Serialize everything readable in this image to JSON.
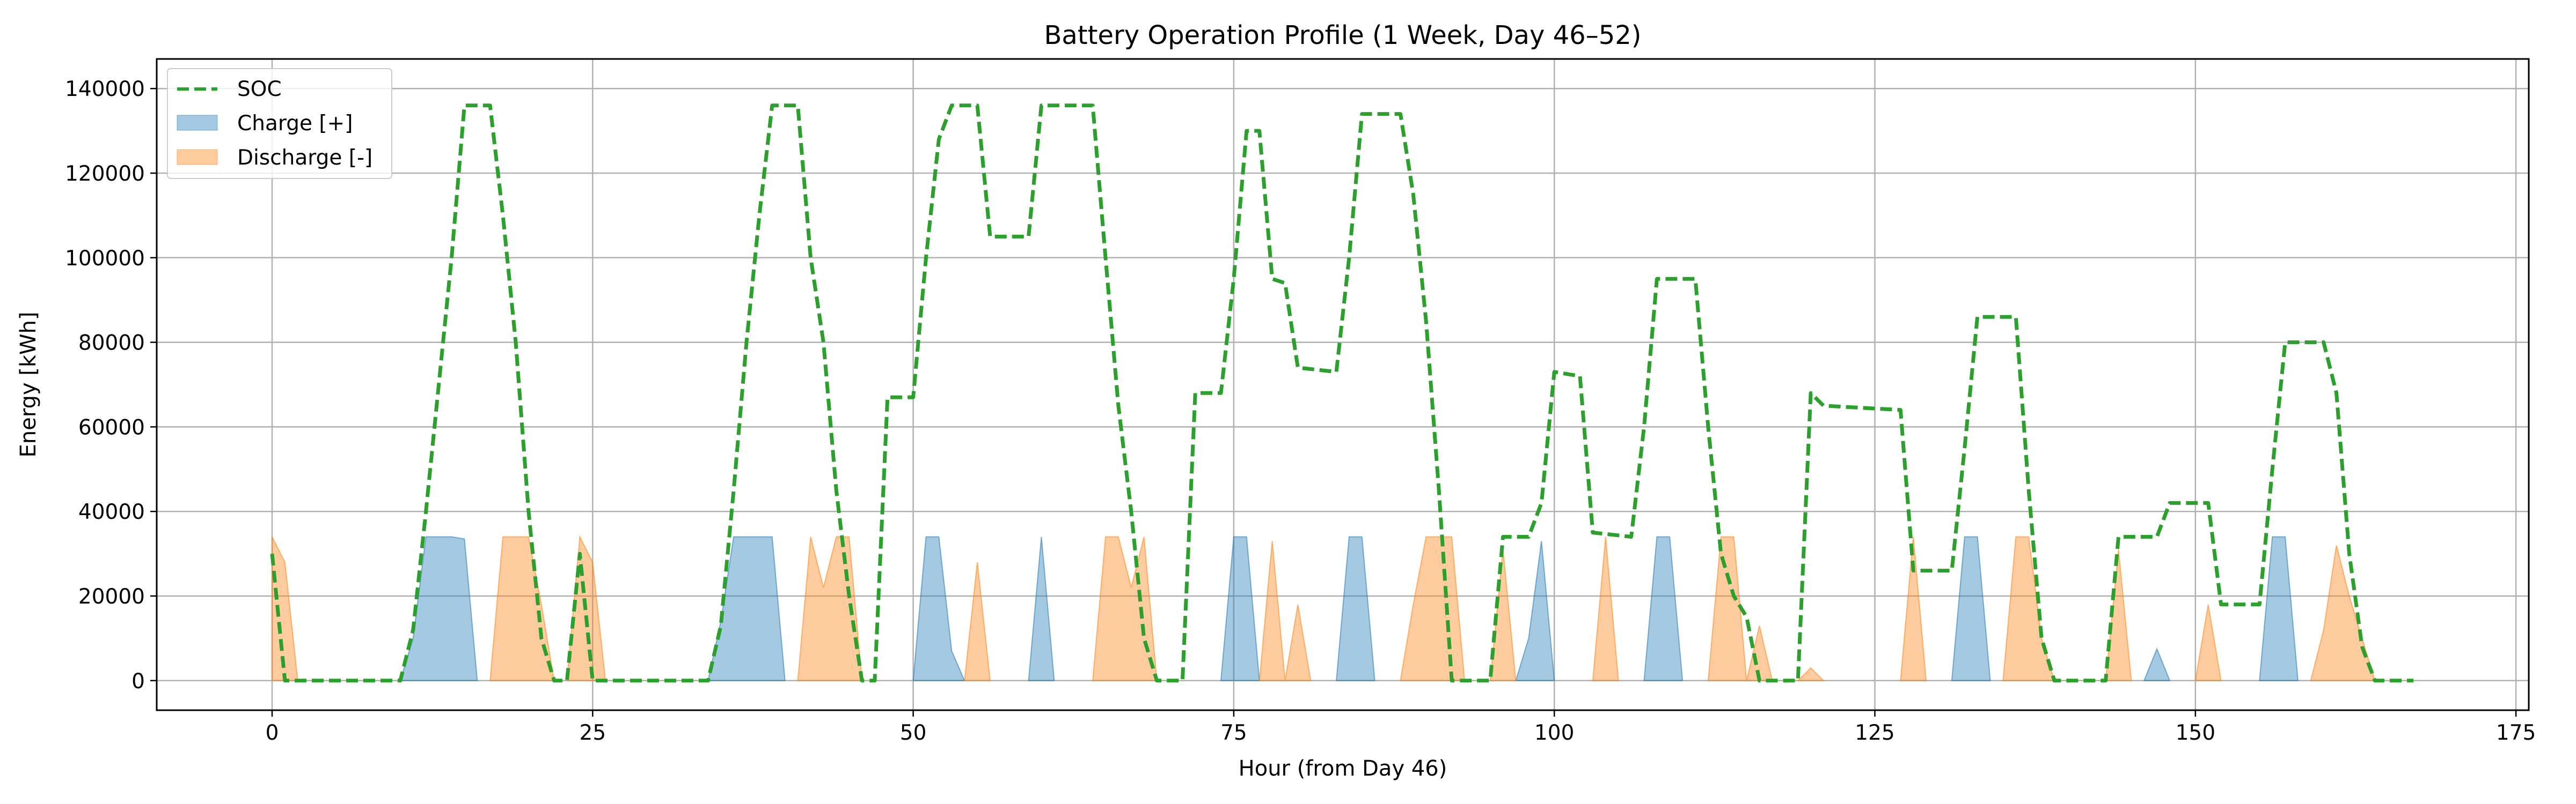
{
  "chart_data": {
    "type": "area",
    "title": "Battery Operation Profile (1 Week, Day 46–52)",
    "xlabel": "Hour (from Day 46)",
    "ylabel": "Energy [kWh]",
    "xlim": [
      -9,
      176
    ],
    "ylim": [
      -7000,
      147000
    ],
    "xticks": [
      0,
      25,
      50,
      75,
      100,
      125,
      150,
      175
    ],
    "yticks": [
      0,
      20000,
      40000,
      60000,
      80000,
      100000,
      120000,
      140000
    ],
    "grid": true,
    "legend_position": "top-left",
    "series": [
      {
        "name": "SOC",
        "kind": "line",
        "style": "dashed",
        "color": "#2ca02c",
        "points": [
          [
            0,
            30000
          ],
          [
            1,
            0
          ],
          [
            10,
            0
          ],
          [
            11,
            12000
          ],
          [
            12,
            40000
          ],
          [
            13,
            70000
          ],
          [
            14,
            100000
          ],
          [
            15,
            136000
          ],
          [
            17,
            136000
          ],
          [
            18,
            110000
          ],
          [
            19,
            80000
          ],
          [
            20,
            40000
          ],
          [
            21,
            10000
          ],
          [
            22,
            0
          ],
          [
            23,
            0
          ],
          [
            24,
            30000
          ],
          [
            25,
            0
          ],
          [
            34,
            0
          ],
          [
            35,
            13000
          ],
          [
            36,
            45000
          ],
          [
            37,
            80000
          ],
          [
            38,
            110000
          ],
          [
            39,
            136000
          ],
          [
            41,
            136000
          ],
          [
            42,
            100000
          ],
          [
            43,
            80000
          ],
          [
            44,
            45000
          ],
          [
            45,
            20000
          ],
          [
            46,
            0
          ],
          [
            47,
            0
          ],
          [
            48,
            67000
          ],
          [
            50,
            67000
          ],
          [
            51,
            100000
          ],
          [
            52,
            128000
          ],
          [
            53,
            136000
          ],
          [
            55,
            136000
          ],
          [
            56,
            105000
          ],
          [
            59,
            105000
          ],
          [
            60,
            136000
          ],
          [
            64,
            136000
          ],
          [
            65,
            100000
          ],
          [
            66,
            65000
          ],
          [
            67,
            40000
          ],
          [
            68,
            10000
          ],
          [
            69,
            0
          ],
          [
            71,
            0
          ],
          [
            72,
            68000
          ],
          [
            74,
            68000
          ],
          [
            75,
            95000
          ],
          [
            76,
            130000
          ],
          [
            77,
            130000
          ],
          [
            78,
            95000
          ],
          [
            79,
            94000
          ],
          [
            80,
            74000
          ],
          [
            83,
            73000
          ],
          [
            84,
            100000
          ],
          [
            85,
            134000
          ],
          [
            88,
            134000
          ],
          [
            89,
            115000
          ],
          [
            90,
            85000
          ],
          [
            91,
            45000
          ],
          [
            92,
            0
          ],
          [
            95,
            0
          ],
          [
            96,
            34000
          ],
          [
            98,
            34000
          ],
          [
            99,
            42000
          ],
          [
            100,
            73000
          ],
          [
            102,
            72000
          ],
          [
            103,
            35000
          ],
          [
            106,
            34000
          ],
          [
            107,
            60000
          ],
          [
            108,
            95000
          ],
          [
            111,
            95000
          ],
          [
            112,
            60000
          ],
          [
            113,
            30000
          ],
          [
            114,
            20000
          ],
          [
            115,
            15000
          ],
          [
            116,
            0
          ],
          [
            119,
            0
          ],
          [
            120,
            68000
          ],
          [
            121,
            65000
          ],
          [
            127,
            64000
          ],
          [
            128,
            26000
          ],
          [
            131,
            26000
          ],
          [
            132,
            55000
          ],
          [
            133,
            86000
          ],
          [
            136,
            86000
          ],
          [
            137,
            45000
          ],
          [
            138,
            10000
          ],
          [
            139,
            0
          ],
          [
            143,
            0
          ],
          [
            144,
            34000
          ],
          [
            147,
            34000
          ],
          [
            148,
            42000
          ],
          [
            151,
            42000
          ],
          [
            152,
            18000
          ],
          [
            155,
            18000
          ],
          [
            156,
            50000
          ],
          [
            157,
            80000
          ],
          [
            160,
            80000
          ],
          [
            161,
            68000
          ],
          [
            162,
            30000
          ],
          [
            163,
            8000
          ],
          [
            164,
            0
          ],
          [
            167,
            0
          ]
        ]
      },
      {
        "name": "Charge [+]",
        "kind": "area",
        "color": "#1f77b4",
        "polygons": [
          [
            [
              10,
              0
            ],
            [
              11,
              10000
            ],
            [
              12,
              34000
            ],
            [
              14,
              34000
            ],
            [
              15,
              33500
            ],
            [
              16,
              0
            ]
          ],
          [
            [
              34,
              0
            ],
            [
              35,
              14000
            ],
            [
              36,
              34000
            ],
            [
              39,
              34000
            ],
            [
              40,
              0
            ]
          ],
          [
            [
              50,
              0
            ],
            [
              51,
              34000
            ],
            [
              52,
              34000
            ],
            [
              53,
              7000
            ],
            [
              54,
              0
            ]
          ],
          [
            [
              59,
              0
            ],
            [
              60,
              34000
            ],
            [
              61,
              0
            ]
          ],
          [
            [
              74,
              0
            ],
            [
              75,
              34000
            ],
            [
              76,
              34000
            ],
            [
              77,
              0
            ]
          ],
          [
            [
              83,
              0
            ],
            [
              84,
              34000
            ],
            [
              85,
              34000
            ],
            [
              86,
              0
            ]
          ],
          [
            [
              97,
              0
            ],
            [
              98,
              10000
            ],
            [
              99,
              33000
            ],
            [
              100,
              0
            ]
          ],
          [
            [
              107,
              0
            ],
            [
              108,
              34000
            ],
            [
              109,
              34000
            ],
            [
              110,
              0
            ]
          ],
          [
            [
              131,
              0
            ],
            [
              132,
              34000
            ],
            [
              133,
              34000
            ],
            [
              134,
              0
            ]
          ],
          [
            [
              146,
              0
            ],
            [
              147,
              7500
            ],
            [
              148,
              0
            ]
          ],
          [
            [
              155,
              0
            ],
            [
              156,
              34000
            ],
            [
              157,
              34000
            ],
            [
              158,
              0
            ]
          ]
        ]
      },
      {
        "name": "Discharge [-]",
        "kind": "area",
        "color": "#ff7f0e",
        "polygons": [
          [
            [
              0,
              0
            ],
            [
              0,
              34000
            ],
            [
              1,
              28000
            ],
            [
              2,
              0
            ]
          ],
          [
            [
              17,
              0
            ],
            [
              18,
              34000
            ],
            [
              20,
              34000
            ],
            [
              21,
              18000
            ],
            [
              22,
              0
            ]
          ],
          [
            [
              23,
              0
            ],
            [
              24,
              34000
            ],
            [
              25,
              28000
            ],
            [
              26,
              0
            ]
          ],
          [
            [
              41,
              0
            ],
            [
              42,
              34000
            ],
            [
              43,
              22000
            ],
            [
              44,
              34000
            ],
            [
              45,
              34000
            ],
            [
              46,
              0
            ]
          ],
          [
            [
              54,
              0
            ],
            [
              55,
              28000
            ],
            [
              56,
              0
            ]
          ],
          [
            [
              64,
              0
            ],
            [
              65,
              34000
            ],
            [
              66,
              34000
            ],
            [
              67,
              22000
            ],
            [
              68,
              34000
            ],
            [
              69,
              0
            ]
          ],
          [
            [
              77,
              0
            ],
            [
              78,
              33000
            ],
            [
              79,
              0
            ],
            [
              80,
              18000
            ],
            [
              81,
              0
            ]
          ],
          [
            [
              88,
              0
            ],
            [
              89,
              18000
            ],
            [
              90,
              34000
            ],
            [
              92,
              34000
            ],
            [
              93,
              0
            ]
          ],
          [
            [
              95,
              0
            ],
            [
              96,
              31000
            ],
            [
              97,
              0
            ]
          ],
          [
            [
              103,
              0
            ],
            [
              104,
              34000
            ],
            [
              105,
              0
            ]
          ],
          [
            [
              112,
              0
            ],
            [
              113,
              34000
            ],
            [
              114,
              34000
            ],
            [
              115,
              0
            ],
            [
              116,
              13000
            ],
            [
              117,
              0
            ]
          ],
          [
            [
              119,
              0
            ],
            [
              120,
              3000
            ],
            [
              121,
              0
            ]
          ],
          [
            [
              127,
              0
            ],
            [
              128,
              34000
            ],
            [
              129,
              0
            ]
          ],
          [
            [
              135,
              0
            ],
            [
              136,
              34000
            ],
            [
              137,
              34000
            ],
            [
              138,
              10000
            ],
            [
              139,
              0
            ]
          ],
          [
            [
              143,
              0
            ],
            [
              144,
              31000
            ],
            [
              145,
              0
            ]
          ],
          [
            [
              150,
              0
            ],
            [
              151,
              18000
            ],
            [
              152,
              0
            ]
          ],
          [
            [
              159,
              0
            ],
            [
              160,
              12000
            ],
            [
              161,
              32000
            ],
            [
              162,
              20000
            ],
            [
              163,
              10000
            ],
            [
              164,
              0
            ]
          ]
        ]
      }
    ]
  }
}
